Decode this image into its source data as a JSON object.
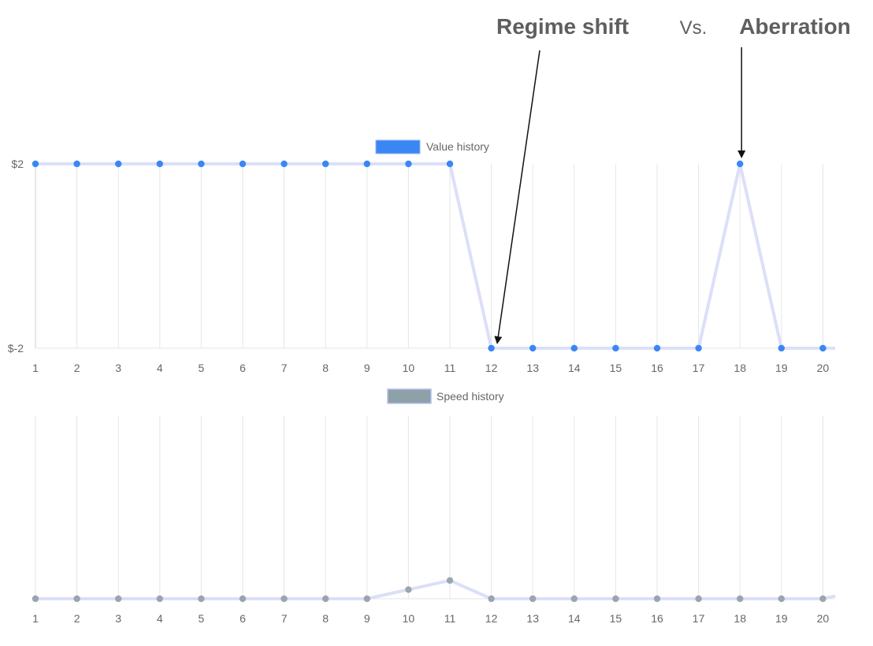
{
  "header": {
    "left_title": "Regime shift",
    "vs_text": "Vs.",
    "right_title": "Aberration"
  },
  "chart_data": [
    {
      "type": "line",
      "categories": [
        "1",
        "2",
        "3",
        "4",
        "5",
        "6",
        "7",
        "8",
        "9",
        "10",
        "11",
        "12",
        "13",
        "14",
        "15",
        "16",
        "17",
        "18",
        "19",
        "20"
      ],
      "series": [
        {
          "name": "Value history",
          "values": [
            2,
            2,
            2,
            2,
            2,
            2,
            2,
            2,
            2,
            2,
            2,
            -2,
            -2,
            -2,
            -2,
            -2,
            -2,
            2,
            -2,
            -2
          ],
          "continues_right_at": -2
        }
      ],
      "y_ticks": [
        "$2",
        "$-2"
      ],
      "ylim": [
        -2,
        2
      ],
      "grid": true,
      "legend": "top-center",
      "legend_color": "#3b86f5",
      "point_color": "#3b86f5",
      "line_color": "#dcdff7",
      "annotations": [
        {
          "label_ref": "header.left_title",
          "target_category": "12"
        },
        {
          "label_ref": "header.right_title",
          "target_category": "18"
        }
      ]
    },
    {
      "type": "line",
      "categories": [
        "1",
        "2",
        "3",
        "4",
        "5",
        "6",
        "7",
        "8",
        "9",
        "10",
        "11",
        "12",
        "13",
        "14",
        "15",
        "16",
        "17",
        "18",
        "19",
        "20"
      ],
      "series": [
        {
          "name": "Speed history",
          "values": [
            0,
            0,
            0,
            0,
            0,
            0,
            0,
            0,
            0,
            0.5,
            1,
            0,
            0,
            0,
            0,
            0,
            0,
            0,
            0,
            0
          ],
          "continues_right_at": 0.15
        }
      ],
      "ylim": [
        0,
        10
      ],
      "grid": true,
      "legend": "top-center",
      "legend_color": "#8ea0a8",
      "point_color": "#9aa6ae",
      "line_color": "#dcdff7"
    }
  ]
}
